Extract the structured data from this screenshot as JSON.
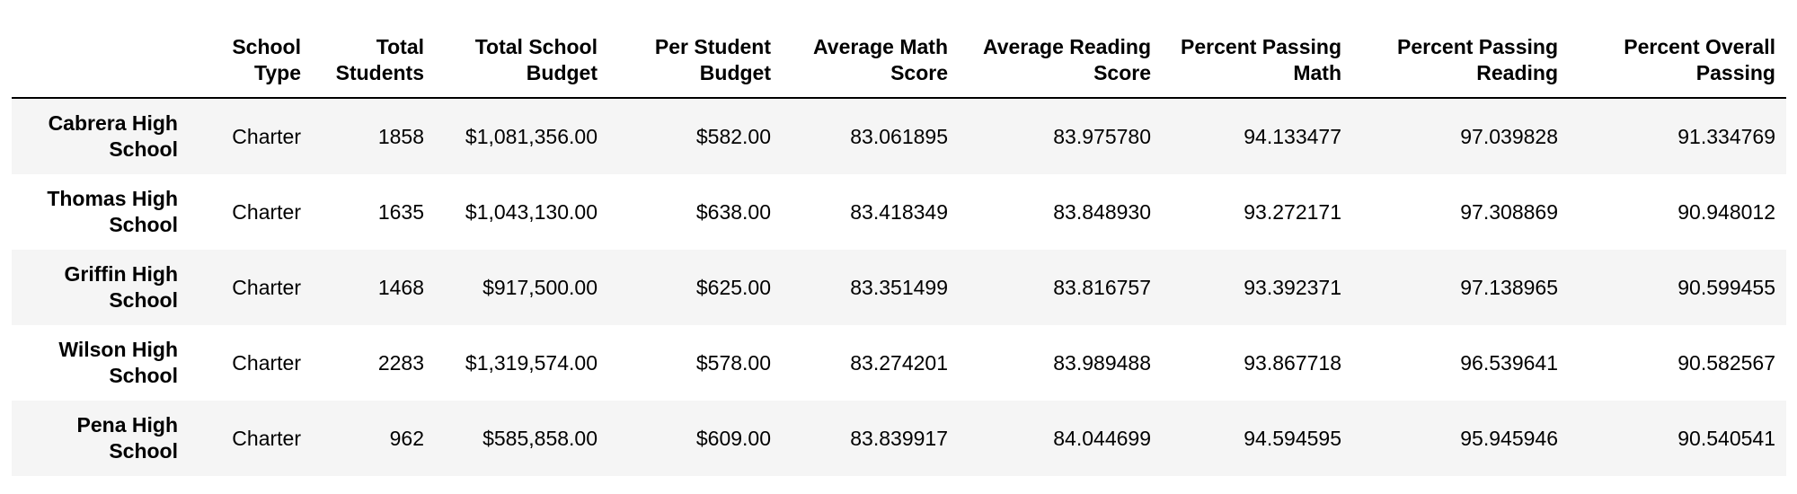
{
  "table": {
    "index_header": "",
    "columns": [
      "School Type",
      "Total Students",
      "Total School Budget",
      "Per Student Budget",
      "Average Math Score",
      "Average Reading Score",
      "Percent Passing Math",
      "Percent Passing Reading",
      "Percent Overall Passing"
    ],
    "rows": [
      {
        "school": "Cabrera High School",
        "cells": [
          "Charter",
          "1858",
          "$1,081,356.00",
          "$582.00",
          "83.061895",
          "83.975780",
          "94.133477",
          "97.039828",
          "91.334769"
        ]
      },
      {
        "school": "Thomas High School",
        "cells": [
          "Charter",
          "1635",
          "$1,043,130.00",
          "$638.00",
          "83.418349",
          "83.848930",
          "93.272171",
          "97.308869",
          "90.948012"
        ]
      },
      {
        "school": "Griffin High School",
        "cells": [
          "Charter",
          "1468",
          "$917,500.00",
          "$625.00",
          "83.351499",
          "83.816757",
          "93.392371",
          "97.138965",
          "90.599455"
        ]
      },
      {
        "school": "Wilson High School",
        "cells": [
          "Charter",
          "2283",
          "$1,319,574.00",
          "$578.00",
          "83.274201",
          "83.989488",
          "93.867718",
          "96.539641",
          "90.582567"
        ]
      },
      {
        "school": "Pena High School",
        "cells": [
          "Charter",
          "962",
          "$585,858.00",
          "$609.00",
          "83.839917",
          "84.044699",
          "94.594595",
          "95.945946",
          "90.540541"
        ]
      }
    ]
  }
}
